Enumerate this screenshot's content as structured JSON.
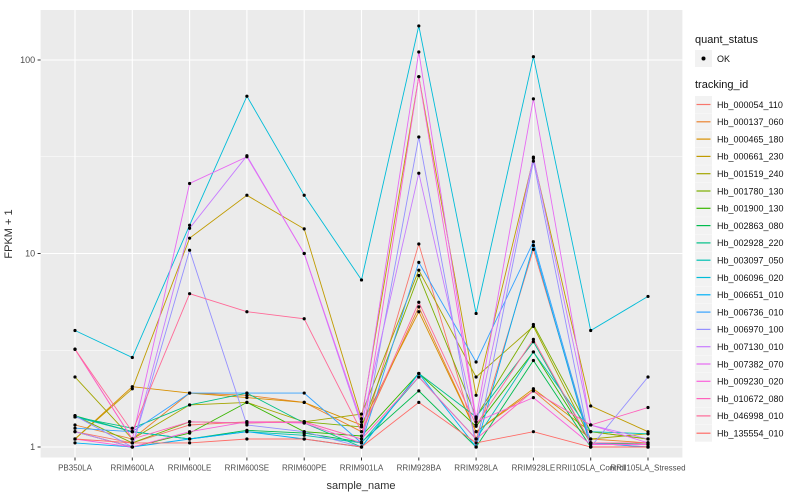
{
  "chart_data": {
    "type": "line",
    "title": "",
    "xlabel": "sample_name",
    "ylabel": "FPKM + 1",
    "y_scale": "log10",
    "y_ticks": [
      "1",
      "10",
      "100"
    ],
    "y_tick_values": [
      1,
      10,
      100
    ],
    "ylim": [
      0.93,
      170
    ],
    "grid": "on",
    "panel_bg": "#EBEBEB",
    "grid_color": "#FFFFFF",
    "point_color": "#000000",
    "legend_position": "right",
    "legend_key_bg": "#F2F2F2",
    "categories": [
      "PB350LA",
      "RRIM600LA",
      "RRIM600LE",
      "RRIM600SE",
      "RRIM600PE",
      "RRIM901LA",
      "RRIM928BA",
      "RRIM928LA",
      "RRIM928LE",
      "RRII105LA_Control",
      "RRII105LA_Stressed"
    ],
    "legend_quant": {
      "title": "quant_status",
      "items": [
        {
          "label": "OK",
          "shape": "point"
        }
      ]
    },
    "legend_tracking": {
      "title": "tracking_id"
    },
    "series": [
      {
        "name": "Hb_000054_110",
        "color": "#F8766D",
        "values": [
          1.2,
          1.05,
          1.3,
          1.35,
          1.35,
          1.1,
          11.2,
          1.1,
          10.5,
          1.05,
          1.0
        ]
      },
      {
        "name": "Hb_000137_060",
        "color": "#EA8331",
        "values": [
          1.3,
          1.1,
          1.9,
          1.85,
          1.7,
          1.2,
          5.3,
          1.2,
          1.95,
          1.1,
          1.05
        ]
      },
      {
        "name": "Hb_000465_180",
        "color": "#D89000",
        "values": [
          1.1,
          2.05,
          1.9,
          1.8,
          1.7,
          1.3,
          5.0,
          1.2,
          2.0,
          1.2,
          1.1
        ]
      },
      {
        "name": "Hb_000661_230",
        "color": "#C09B00",
        "values": [
          1.1,
          2.0,
          12.0,
          20.0,
          13.4,
          1.4,
          82.0,
          1.85,
          31.0,
          1.63,
          1.2
        ]
      },
      {
        "name": "Hb_001519_240",
        "color": "#A3A500",
        "values": [
          2.3,
          1.1,
          1.65,
          1.7,
          1.35,
          1.48,
          8.2,
          2.3,
          4.2,
          1.1,
          1.17
        ]
      },
      {
        "name": "Hb_001780_130",
        "color": "#7CAE00",
        "values": [
          1.45,
          1.05,
          1.35,
          1.33,
          1.35,
          1.27,
          7.7,
          1.43,
          4.3,
          1.2,
          1.1
        ]
      },
      {
        "name": "Hb_001900_130",
        "color": "#39B600",
        "values": [
          1.2,
          1.0,
          1.18,
          1.7,
          1.2,
          1.14,
          2.4,
          1.28,
          3.1,
          1.05,
          1.05
        ]
      },
      {
        "name": "Hb_002863_080",
        "color": "#00BB4E",
        "values": [
          1.45,
          1.2,
          1.1,
          1.22,
          1.18,
          1.06,
          1.95,
          1.0,
          2.8,
          1.0,
          1.0
        ]
      },
      {
        "name": "Hb_002928_220",
        "color": "#00C087",
        "values": [
          1.43,
          1.25,
          1.65,
          1.9,
          1.33,
          1.0,
          2.4,
          1.43,
          3.5,
          1.05,
          1.03
        ]
      },
      {
        "name": "Hb_003097_050",
        "color": "#00C0B2",
        "values": [
          1.43,
          1.2,
          1.1,
          1.2,
          1.15,
          1.05,
          2.3,
          1.1,
          3.1,
          1.2,
          1.17
        ]
      },
      {
        "name": "Hb_006096_020",
        "color": "#00BCD8",
        "values": [
          4.0,
          2.9,
          14.0,
          65.0,
          20.0,
          7.3,
          150.0,
          4.9,
          104.0,
          4.0,
          6.0
        ]
      },
      {
        "name": "Hb_006651_010",
        "color": "#00B0F6",
        "values": [
          1.05,
          1.0,
          1.1,
          1.2,
          1.1,
          1.0,
          2.4,
          1.0,
          11.0,
          1.0,
          1.0
        ]
      },
      {
        "name": "Hb_006736_010",
        "color": "#35A2FF",
        "values": [
          1.25,
          1.2,
          1.9,
          1.9,
          1.9,
          1.05,
          9.0,
          2.75,
          11.5,
          1.05,
          1.0
        ]
      },
      {
        "name": "Hb_006970_100",
        "color": "#9590FF",
        "values": [
          1.45,
          1.0,
          10.4,
          1.3,
          1.2,
          1.0,
          40.0,
          1.0,
          30.0,
          1.0,
          2.3
        ]
      },
      {
        "name": "Hb_007130_010",
        "color": "#C77CFF",
        "values": [
          1.2,
          1.0,
          13.5,
          32.0,
          10.0,
          1.3,
          26.0,
          1.3,
          31.5,
          1.3,
          1.1
        ]
      },
      {
        "name": "Hb_007382_070",
        "color": "#E76BF3",
        "values": [
          3.2,
          1.1,
          23.0,
          31.6,
          10.0,
          1.35,
          110.0,
          1.4,
          63.0,
          1.3,
          1.05
        ]
      },
      {
        "name": "Hb_009230_020",
        "color": "#FA62DB",
        "values": [
          1.1,
          1.0,
          1.2,
          1.35,
          1.33,
          1.05,
          82.0,
          1.35,
          1.8,
          1.03,
          1.03
        ]
      },
      {
        "name": "Hb_010672_080",
        "color": "#FF62BC",
        "values": [
          3.2,
          1.1,
          1.35,
          1.33,
          1.35,
          1.1,
          2.3,
          1.1,
          1.95,
          1.3,
          1.6
        ]
      },
      {
        "name": "Hb_046998_010",
        "color": "#FF6A98",
        "values": [
          3.2,
          1.2,
          6.2,
          5.0,
          4.6,
          1.2,
          5.6,
          1.3,
          3.6,
          1.05,
          1.05
        ]
      },
      {
        "name": "Hb_135554_010",
        "color": "#FF6C67",
        "values": [
          1.1,
          1.05,
          1.05,
          1.1,
          1.1,
          1.0,
          1.7,
          1.05,
          1.2,
          1.0,
          1.0
        ]
      }
    ]
  }
}
